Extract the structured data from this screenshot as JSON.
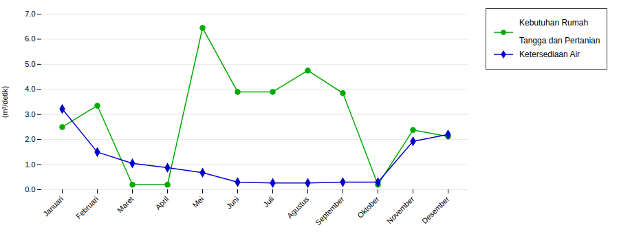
{
  "chart_data": {
    "type": "line",
    "categories": [
      "Januari",
      "Februari",
      "Maret",
      "April",
      "Mei",
      "Juni",
      "Juli",
      "Agustus",
      "September",
      "Oktober",
      "November",
      "Desember"
    ],
    "series": [
      {
        "name": "Kebutuhan Rumah\n\nTangga dan Pertanian",
        "color": "#00aa00",
        "marker": "circle",
        "values": [
          2.5,
          3.35,
          0.2,
          0.2,
          6.45,
          3.9,
          3.9,
          4.75,
          3.85,
          0.2,
          2.38,
          2.12
        ]
      },
      {
        "name": "Ketersediaan Air",
        "color": "#0000cc",
        "marker": "diamond",
        "values": [
          3.22,
          1.5,
          1.05,
          0.88,
          0.68,
          0.3,
          0.27,
          0.27,
          0.3,
          0.3,
          1.93,
          2.2
        ]
      }
    ],
    "ylabel": "(m³/detik)",
    "ylim": [
      0,
      7
    ],
    "yticks": [
      0,
      1,
      2,
      3,
      4,
      5,
      6,
      7
    ],
    "grid": true,
    "legend": "right"
  }
}
